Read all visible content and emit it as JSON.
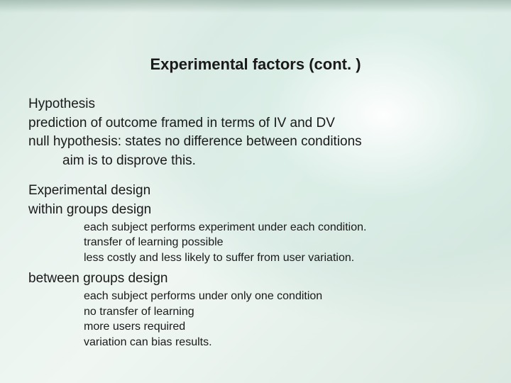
{
  "slide": {
    "title": "Experimental factors (cont. )",
    "section1": {
      "heading": "Hypothesis",
      "lines": [
        "prediction of outcome framed in terms of IV and DV",
        "null hypothesis: states no difference between conditions"
      ],
      "indented": "aim is to disprove this."
    },
    "section2": {
      "heading": "Experimental design",
      "sub1": {
        "heading": "within groups design",
        "lines": [
          "each subject performs experiment under each condition.",
          "transfer of learning possible",
          "less costly and less likely to suffer from user variation."
        ]
      },
      "sub2": {
        "heading": "between groups design",
        "lines": [
          "each subject performs under only one condition",
          "no transfer of learning",
          "more users required",
          "variation can bias results."
        ]
      }
    }
  },
  "style": {
    "background_gradient_colors": [
      "#d5e8e0",
      "#e8f2ed",
      "#f0f7f3",
      "#e5f0ea",
      "#dae9e1"
    ],
    "highlight_color": "#ffffff",
    "text_color": "#1a1a1a",
    "title_fontsize": 22,
    "body_fontsize": 19,
    "sub_fontsize": 16,
    "font_family": "Arial"
  }
}
